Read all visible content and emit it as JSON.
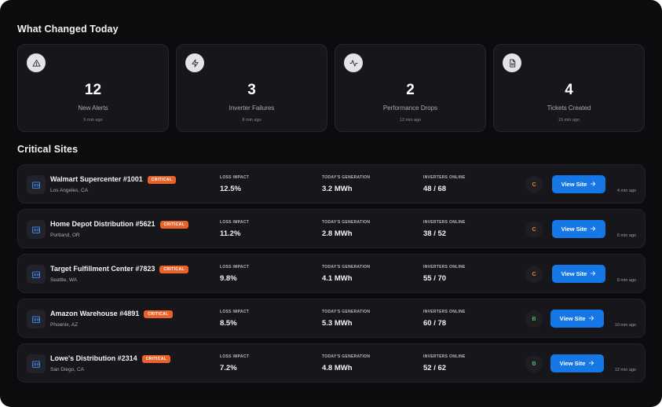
{
  "changed": {
    "title": "What Changed Today",
    "cards": [
      {
        "icon": "alert-triangle-icon",
        "value": "12",
        "label": "New Alerts",
        "time": "5 min ago"
      },
      {
        "icon": "lightning-icon",
        "value": "3",
        "label": "Inverter Failures",
        "time": "8 min ago"
      },
      {
        "icon": "activity-icon",
        "value": "2",
        "label": "Performance Drops",
        "time": "12 min ago"
      },
      {
        "icon": "document-icon",
        "value": "4",
        "label": "Tickets Created",
        "time": "15 min ago"
      }
    ]
  },
  "sites": {
    "title": "Critical Sites",
    "labels": {
      "loss": "LOSS IMPACT",
      "generation": "TODAY'S GENERATION",
      "inverters": "INVERTERS ONLINE",
      "button": "View Site"
    },
    "colors": {
      "badge": "#e8622a",
      "button": "#1677e6",
      "grade_c": "#f08a2c",
      "grade_b": "#3fbf6a"
    },
    "rows": [
      {
        "name": "Walmart Supercenter #1001",
        "badge": "CRITICAL",
        "location": "Los Angeles, CA",
        "loss": "12.5%",
        "generation": "3.2 MWh",
        "inverters": "48 / 68",
        "grade": "C",
        "time": "4 min ago"
      },
      {
        "name": "Home Depot Distribution #5621",
        "badge": "CRITICAL",
        "location": "Portland, OR",
        "loss": "11.2%",
        "generation": "2.8 MWh",
        "inverters": "38 / 52",
        "grade": "C",
        "time": "6 min ago"
      },
      {
        "name": "Target Fulfillment Center #7823",
        "badge": "CRITICAL",
        "location": "Seattle, WA",
        "loss": "9.8%",
        "generation": "4.1 MWh",
        "inverters": "55 / 70",
        "grade": "C",
        "time": "8 min ago"
      },
      {
        "name": "Amazon Warehouse #4891",
        "badge": "CRITICAL",
        "location": "Phoenix, AZ",
        "loss": "8.5%",
        "generation": "5.3 MWh",
        "inverters": "60 / 78",
        "grade": "B",
        "time": "10 min ago"
      },
      {
        "name": "Lowe's Distribution #2314",
        "badge": "CRITICAL",
        "location": "San Diego, CA",
        "loss": "7.2%",
        "generation": "4.8 MWh",
        "inverters": "52 / 62",
        "grade": "B",
        "time": "12 min ago"
      }
    ]
  }
}
